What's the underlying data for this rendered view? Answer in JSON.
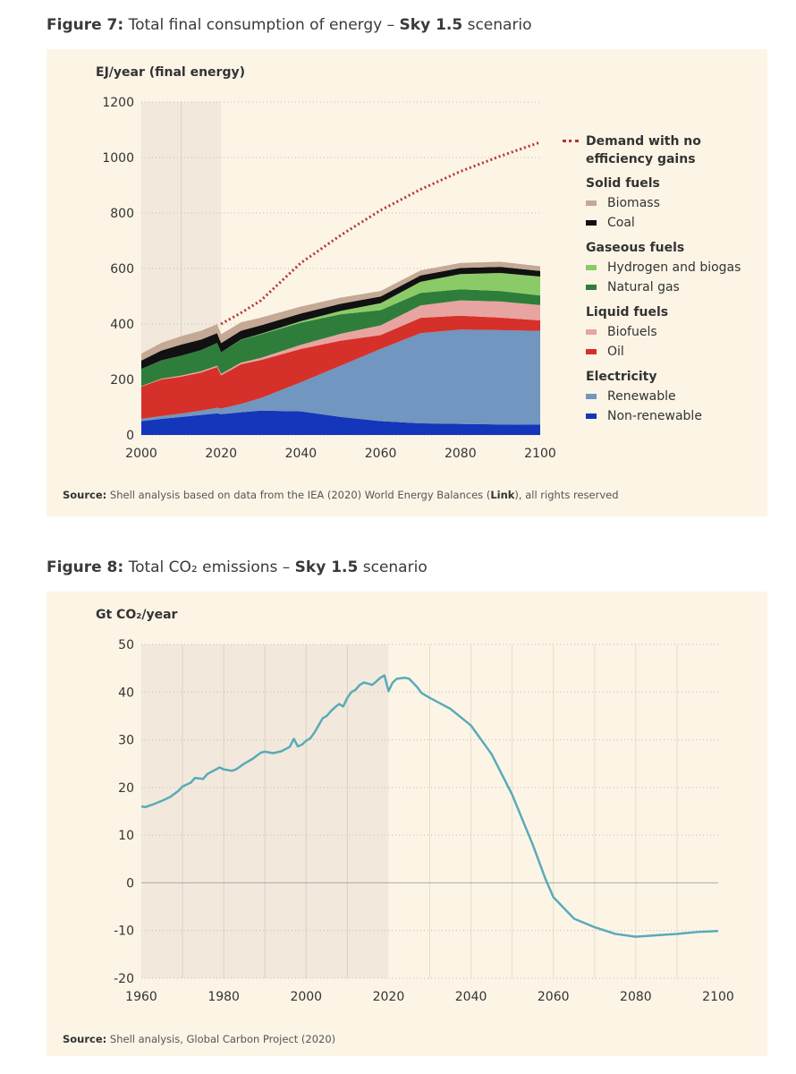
{
  "chart_data": [
    {
      "type": "stacked-area",
      "title": {
        "label": "Figure 7:",
        "text": " Total final consumption of energy – ",
        "emph": "Sky 1.5",
        "end": " scenario"
      },
      "y_label": "EJ/year (final energy)",
      "x": [
        2000,
        2005,
        2010,
        2015,
        2019,
        2020,
        2025,
        2030,
        2040,
        2050,
        2060,
        2070,
        2080,
        2090,
        2100
      ],
      "xlim": [
        2000,
        2100
      ],
      "xticks": [
        2000,
        2020,
        2040,
        2060,
        2080,
        2100
      ],
      "ylim": [
        0,
        1200
      ],
      "yticks": [
        0,
        200,
        400,
        600,
        800,
        1000,
        1200
      ],
      "grid": true,
      "shaded_xrange": [
        2000,
        2020
      ],
      "x_gridlines": [
        2010
      ],
      "line": {
        "name": "Demand with no efficiency gains",
        "color": "#b83232",
        "values": [
          null,
          null,
          null,
          null,
          null,
          400,
          440,
          485,
          620,
          720,
          810,
          885,
          950,
          1005,
          1055
        ]
      },
      "groups": [
        {
          "name": "Solid fuels",
          "series": [
            {
              "name": "Biomass",
              "color": "#c4a996",
              "values": [
                25,
                28,
                30,
                32,
                32,
                32,
                30,
                28,
                25,
                22,
                20,
                18,
                18,
                18,
                17
              ]
            },
            {
              "name": "Coal",
              "color": "#111111",
              "values": [
                30,
                35,
                40,
                38,
                35,
                33,
                32,
                30,
                28,
                26,
                24,
                23,
                22,
                22,
                20
              ]
            }
          ]
        },
        {
          "name": "Gaseous fuels",
          "series": [
            {
              "name": "Hydrogen and biogas",
              "color": "#8acb68",
              "values": [
                0,
                0,
                0,
                0,
                0,
                0,
                1,
                2,
                5,
                12,
                25,
                40,
                55,
                65,
                68
              ]
            },
            {
              "name": "Natural gas",
              "color": "#2f7d3b",
              "values": [
                62,
                66,
                72,
                76,
                82,
                78,
                82,
                85,
                80,
                70,
                55,
                45,
                40,
                38,
                35
              ]
            }
          ]
        },
        {
          "name": "Liquid fuels",
          "series": [
            {
              "name": "Biofuels",
              "color": "#e8a4a0",
              "values": [
                2,
                3,
                4,
                5,
                5,
                5,
                6,
                8,
                15,
                25,
                35,
                45,
                55,
                58,
                55
              ]
            },
            {
              "name": "Oil",
              "color": "#d5312a",
              "values": [
                116,
                132,
                133,
                137,
                147,
                120,
                143,
                137,
                120,
                90,
                50,
                55,
                50,
                45,
                38
              ]
            }
          ]
        },
        {
          "name": "Electricity",
          "series": [
            {
              "name": "Renewable",
              "color": "#7196bf",
              "values": [
                8,
                10,
                12,
                16,
                20,
                20,
                30,
                45,
                105,
                185,
                260,
                325,
                340,
                340,
                338
              ]
            },
            {
              "name": "Non-renewable",
              "color": "#1336bb",
              "values": [
                50,
                58,
                65,
                72,
                78,
                75,
                82,
                88,
                85,
                65,
                50,
                42,
                40,
                38,
                37
              ]
            }
          ]
        }
      ],
      "source": {
        "label": "Source:",
        "text": " Shell analysis based on data from the IEA (2020) World Energy Balances (",
        "link": "Link",
        "end": "), all rights reserved"
      }
    },
    {
      "type": "line",
      "title": {
        "label": "Figure 8:",
        "text": " Total CO₂ emissions – ",
        "emph": "Sky 1.5",
        "end": " scenario"
      },
      "y_label": "Gt CO₂/year",
      "x": [
        1960,
        1961,
        1963,
        1965,
        1967,
        1969,
        1970,
        1972,
        1973,
        1975,
        1976,
        1979,
        1980,
        1982,
        1983,
        1985,
        1987,
        1989,
        1990,
        1992,
        1994,
        1996,
        1997,
        1998,
        1999,
        2000,
        2001,
        2002,
        2003,
        2004,
        2005,
        2006,
        2007,
        2008,
        2009,
        2010,
        2011,
        2012,
        2013,
        2014,
        2015,
        2016,
        2017,
        2018,
        2019,
        2020,
        2021,
        2022,
        2024,
        2025,
        2027,
        2028,
        2030,
        2035,
        2040,
        2045,
        2050,
        2055,
        2058,
        2060,
        2065,
        2070,
        2075,
        2080,
        2085,
        2090,
        2095,
        2100
      ],
      "series": [
        {
          "color": "#5aaab8",
          "values": [
            16.0,
            15.9,
            16.5,
            17.2,
            18.0,
            19.3,
            20.2,
            21.0,
            22.0,
            21.8,
            22.8,
            24.2,
            23.8,
            23.5,
            23.8,
            25.0,
            26.0,
            27.3,
            27.5,
            27.2,
            27.6,
            28.5,
            30.2,
            28.6,
            29.0,
            29.8,
            30.3,
            31.5,
            33.0,
            34.5,
            35.0,
            36.0,
            36.8,
            37.5,
            37.0,
            38.8,
            40.0,
            40.5,
            41.5,
            42.0,
            41.8,
            41.5,
            42.2,
            43.0,
            43.5,
            40.2,
            42.0,
            42.8,
            43.0,
            42.8,
            41.0,
            39.8,
            38.8,
            36.5,
            33.0,
            27.0,
            18.5,
            8.0,
            1.0,
            -3.0,
            -7.5,
            -9.3,
            -10.7,
            -11.3,
            -11.0,
            -10.7,
            -10.3,
            -10.1
          ]
        }
      ],
      "xlim": [
        1960,
        2100
      ],
      "xticks": [
        1960,
        1980,
        2000,
        2020,
        2040,
        2060,
        2080,
        2100
      ],
      "ylim": [
        -20,
        50
      ],
      "yticks": [
        -20,
        -10,
        0,
        10,
        20,
        30,
        40,
        50
      ],
      "grid": true,
      "shaded_xrange": [
        1960,
        2020
      ],
      "x_gridlines": [
        1970,
        1980,
        1990,
        2000,
        2010,
        2030,
        2040,
        2050,
        2060,
        2070,
        2080,
        2090
      ],
      "source": {
        "label": "Source:",
        "text": " Shell analysis, Global Carbon Project (2020)"
      }
    }
  ]
}
